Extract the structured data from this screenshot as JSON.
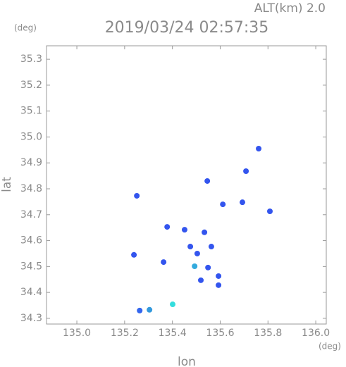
{
  "chart_data": {
    "type": "scatter",
    "title": "2019/03/24 02:57:35",
    "subtitle": "ALT(km) 2.0",
    "y_unit": "(deg)",
    "x_unit": "(deg)",
    "x_label": "lon",
    "y_label": "lat",
    "x": [
      135.761,
      135.708,
      135.693,
      135.611,
      135.808,
      135.251,
      135.378,
      135.451,
      135.534,
      135.475,
      135.504,
      135.563,
      135.493,
      135.549,
      135.593,
      135.519,
      135.593,
      135.363,
      135.239,
      135.546,
      135.304,
      135.401,
      135.263
    ],
    "values": [
      34.955,
      34.868,
      34.748,
      34.74,
      34.713,
      34.773,
      34.653,
      34.642,
      34.632,
      34.577,
      34.55,
      34.577,
      34.501,
      34.496,
      34.463,
      34.447,
      34.428,
      34.517,
      34.545,
      34.83,
      34.333,
      34.354,
      34.33
    ],
    "colors": [
      "#3355ee",
      "#3355ee",
      "#3355ee",
      "#3355ee",
      "#3355ee",
      "#3355ee",
      "#3355ee",
      "#3355ee",
      "#3355ee",
      "#3355ee",
      "#3355ee",
      "#3355ee",
      "#33aadd",
      "#3355ee",
      "#3355ee",
      "#3355ee",
      "#3355ee",
      "#3355ee",
      "#3355ee",
      "#3355ee",
      "#3399dd",
      "#33dddd",
      "#3366ee"
    ],
    "xlim": [
      134.873,
      136.044
    ],
    "ylim": [
      34.278,
      35.352
    ],
    "xticks": [
      {
        "value": 135,
        "label": "135.0"
      },
      135.2,
      135.4,
      135.6,
      135.8,
      {
        "value": 136,
        "label": "136.0"
      }
    ],
    "yticks": [
      34.3,
      34.4,
      34.5,
      34.6,
      34.7,
      34.8,
      34.9,
      {
        "value": 35,
        "label": "35.0"
      },
      35.1,
      35.2,
      35.3
    ]
  }
}
